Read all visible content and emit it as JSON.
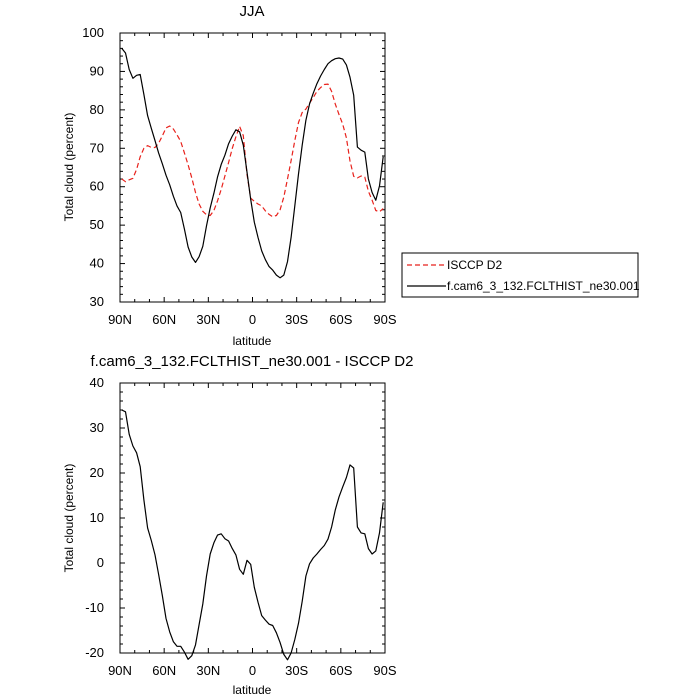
{
  "chart_data": [
    {
      "type": "line",
      "title": "JJA",
      "xlabel": "latitude",
      "ylabel": "Total cloud (percent)",
      "x_ticks": [
        -90,
        -60,
        -30,
        0,
        30,
        60,
        90
      ],
      "x_tick_labels": [
        "90N",
        "60N",
        "30N",
        "0",
        "30S",
        "60S",
        "90S"
      ],
      "xlim": [
        -90,
        90
      ],
      "ylim": [
        30,
        100
      ],
      "y_ticks": [
        30,
        40,
        50,
        60,
        70,
        80,
        90,
        100
      ],
      "y_tick_labels": [
        "30",
        "40",
        "50",
        "60",
        "70",
        "80",
        "90",
        "100"
      ],
      "grid": false,
      "legend_position": "right",
      "series": [
        {
          "name": "ISCCP D2",
          "color": "#e8221c",
          "dash": "dashed",
          "x": [
            -88.75,
            -86.25,
            -83.75,
            -81.25,
            -78.75,
            -76.25,
            -73.75,
            -71.25,
            -68.75,
            -66.25,
            -63.75,
            -61.25,
            -58.75,
            -56.25,
            -53.75,
            -51.25,
            -48.75,
            -46.25,
            -43.75,
            -41.25,
            -38.75,
            -36.25,
            -33.75,
            -31.25,
            -28.75,
            -26.25,
            -23.75,
            -21.25,
            -18.75,
            -16.25,
            -13.75,
            -11.25,
            -8.75,
            -6.25,
            -3.75,
            -1.25,
            1.25,
            3.75,
            6.25,
            8.75,
            11.25,
            13.75,
            16.25,
            18.75,
            21.25,
            23.75,
            26.25,
            28.75,
            31.25,
            33.75,
            36.25,
            38.75,
            41.25,
            43.75,
            46.25,
            48.75,
            51.25,
            53.75,
            56.25,
            58.75,
            61.25,
            63.75,
            66.25,
            68.75,
            71.25,
            73.75,
            76.25,
            78.75,
            81.25,
            83.75,
            86.25,
            88.75
          ],
          "values": [
            62,
            61.3,
            61.8,
            62.2,
            64.5,
            67.8,
            70,
            70.7,
            70.2,
            70.2,
            71.3,
            73.2,
            75.3,
            75.8,
            75,
            73.5,
            71.8,
            68.8,
            65.7,
            62.3,
            58.5,
            55.5,
            53.6,
            52.7,
            52.5,
            53.8,
            56.3,
            59.3,
            62.8,
            66.3,
            70,
            73,
            75.7,
            73.3,
            63.2,
            57,
            56.2,
            55.5,
            55,
            53.7,
            52.8,
            52.2,
            52.5,
            54,
            57.3,
            62,
            66.8,
            72,
            76.7,
            79.3,
            80.2,
            81.7,
            83.2,
            84.8,
            85.8,
            86.6,
            86.7,
            84.8,
            81.5,
            78.8,
            76.3,
            72.7,
            66.7,
            62.7,
            62.3,
            62.8,
            62.5,
            58.8,
            56.5,
            53.8,
            53.5,
            54.3
          ]
        },
        {
          "name": "f.cam6_3_132.FCLTHIST_ne30.001",
          "color": "#000000",
          "dash": "solid",
          "x": [
            -88.75,
            -86.25,
            -83.75,
            -81.25,
            -78.75,
            -76.25,
            -73.75,
            -71.25,
            -68.75,
            -66.25,
            -63.75,
            -61.25,
            -58.75,
            -56.25,
            -53.75,
            -51.25,
            -48.75,
            -46.25,
            -43.75,
            -41.25,
            -38.75,
            -36.25,
            -33.75,
            -31.25,
            -28.75,
            -26.25,
            -23.75,
            -21.25,
            -18.75,
            -16.25,
            -13.75,
            -11.25,
            -8.75,
            -6.25,
            -3.75,
            -1.25,
            1.25,
            3.75,
            6.25,
            8.75,
            11.25,
            13.75,
            16.25,
            18.75,
            21.25,
            23.75,
            26.25,
            28.75,
            31.25,
            33.75,
            36.25,
            38.75,
            41.25,
            43.75,
            46.25,
            48.75,
            51.25,
            53.75,
            56.25,
            58.75,
            61.25,
            63.75,
            66.25,
            68.75,
            71.25,
            73.75,
            76.25,
            78.75,
            81.25,
            83.75,
            86.25,
            88.75
          ],
          "values": [
            96,
            94.8,
            90.5,
            88.2,
            89,
            89.2,
            84,
            78.5,
            75.2,
            72,
            68.8,
            66,
            63,
            60.5,
            57.5,
            55,
            53.3,
            49,
            44.3,
            41.7,
            40.3,
            41.8,
            44.5,
            49.8,
            54.5,
            58.3,
            62.5,
            65.8,
            68.2,
            71.2,
            73.2,
            74.8,
            74.3,
            70.8,
            63.8,
            56.7,
            50.8,
            46.8,
            43.3,
            41,
            39.2,
            38.3,
            37,
            36.3,
            37,
            40.5,
            46.8,
            55,
            63.3,
            70.8,
            77.3,
            81.5,
            84.3,
            86.8,
            88.8,
            90.5,
            92,
            92.8,
            93.3,
            93.5,
            93.2,
            91.7,
            88.5,
            83.8,
            70.3,
            69.5,
            69,
            62,
            58.5,
            56.5,
            60.2,
            67.8
          ]
        }
      ]
    },
    {
      "type": "line",
      "title": "f.cam6_3_132.FCLTHIST_ne30.001 - ISCCP D2",
      "xlabel": "latitude",
      "ylabel": "Total cloud (percent)",
      "x_ticks": [
        -90,
        -60,
        -30,
        0,
        30,
        60,
        90
      ],
      "x_tick_labels": [
        "90N",
        "60N",
        "30N",
        "0",
        "30S",
        "60S",
        "90S"
      ],
      "xlim": [
        -90,
        90
      ],
      "ylim": [
        -20,
        40
      ],
      "y_ticks": [
        -20,
        -10,
        0,
        10,
        20,
        30,
        40
      ],
      "y_tick_labels": [
        "-20",
        "-10",
        "0",
        "10",
        "20",
        "30",
        "40"
      ],
      "grid": false,
      "series": [
        {
          "color": "#000000",
          "dash": "solid",
          "x": [
            -88.75,
            -86.25,
            -83.75,
            -81.25,
            -78.75,
            -76.25,
            -73.75,
            -71.25,
            -68.75,
            -66.25,
            -63.75,
            -61.25,
            -58.75,
            -56.25,
            -53.75,
            -51.25,
            -48.75,
            -46.25,
            -43.75,
            -41.25,
            -38.75,
            -36.25,
            -33.75,
            -31.25,
            -28.75,
            -26.25,
            -23.75,
            -21.25,
            -18.75,
            -16.25,
            -13.75,
            -11.25,
            -8.75,
            -6.25,
            -3.75,
            -1.25,
            1.25,
            3.75,
            6.25,
            8.75,
            11.25,
            13.75,
            16.25,
            18.75,
            21.25,
            23.75,
            26.25,
            28.75,
            31.25,
            33.75,
            36.25,
            38.75,
            41.25,
            43.75,
            46.25,
            48.75,
            51.25,
            53.75,
            56.25,
            58.75,
            61.25,
            63.75,
            66.25,
            68.75,
            71.25,
            73.75,
            76.25,
            78.75,
            81.25,
            83.75,
            86.25,
            88.75
          ],
          "values": [
            34,
            33.6,
            28.6,
            26,
            24.5,
            21.4,
            14,
            7.8,
            5,
            1.8,
            -2.5,
            -7.2,
            -12.3,
            -15.3,
            -17.5,
            -18.5,
            -18.5,
            -19.8,
            -21.4,
            -20.6,
            -18.2,
            -13.7,
            -9.1,
            -2.9,
            2,
            4.5,
            6.2,
            6.5,
            5.4,
            4.9,
            3.2,
            1.8,
            -1.4,
            -2.5,
            0.6,
            -0.3,
            -5.4,
            -8.7,
            -11.7,
            -12.7,
            -13.6,
            -13.9,
            -15.5,
            -17.7,
            -20.3,
            -21.5,
            -20,
            -17,
            -13.4,
            -8.5,
            -2.9,
            -0.2,
            1.1,
            2,
            3,
            3.9,
            5.3,
            8,
            11.8,
            14.7,
            16.9,
            19,
            21.8,
            21.1,
            8,
            6.7,
            6.5,
            3.2,
            2,
            2.7,
            6.7,
            13.5
          ]
        }
      ]
    }
  ]
}
